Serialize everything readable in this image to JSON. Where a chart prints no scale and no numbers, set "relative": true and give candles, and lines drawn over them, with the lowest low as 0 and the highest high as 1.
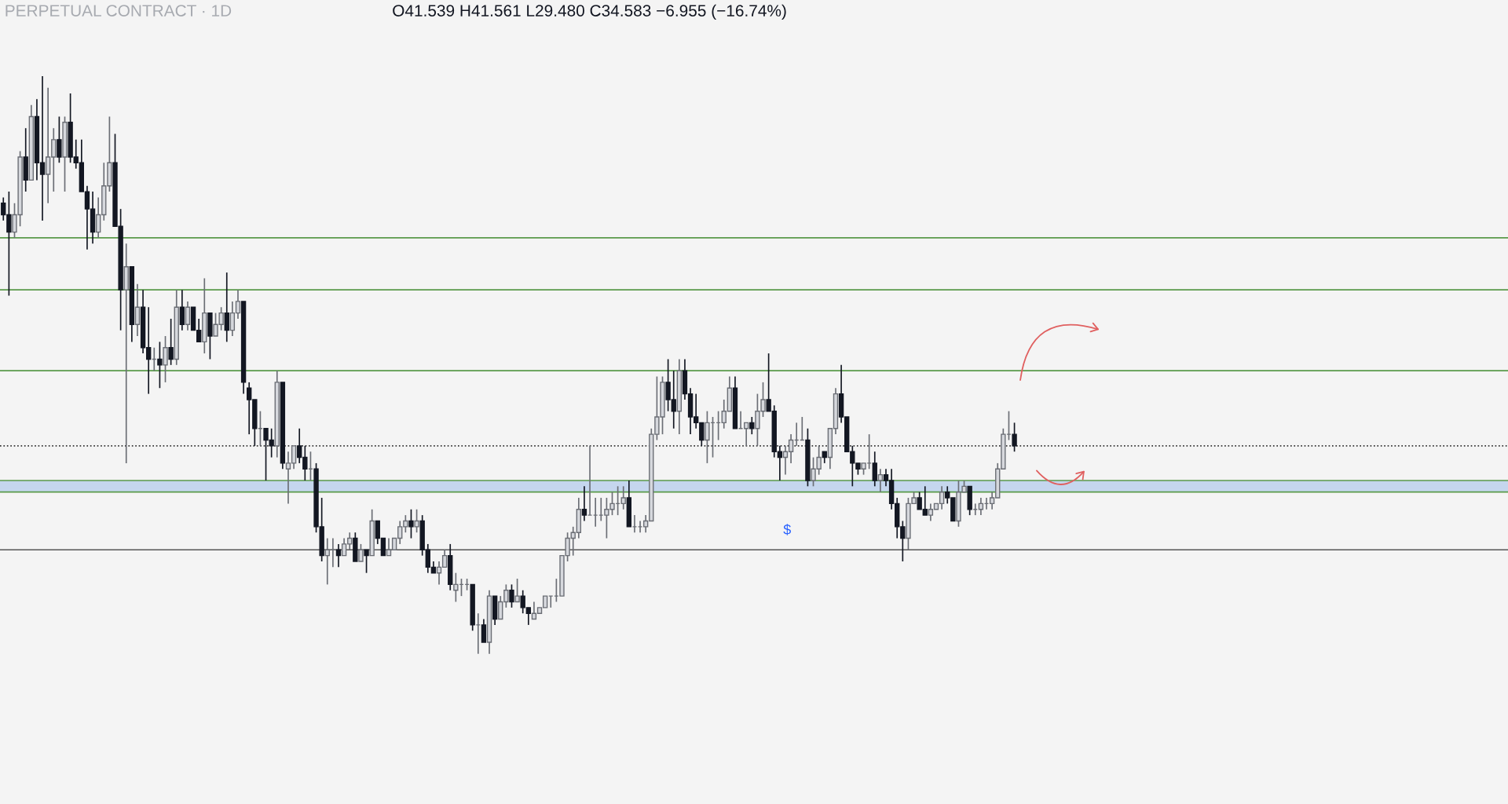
{
  "chart_data": {
    "type": "candlestick",
    "relative": true,
    "title": "PERPETUAL CONTRACT · 1D",
    "annotations": [
      "O41.539 H41.561 L29.480 C34.583 −6.955 (−16.74%)",
      "$"
    ],
    "grid": false,
    "legend": false,
    "ref_lines": [
      {
        "axis": "y",
        "value": 0.72,
        "color": "#5a9a4a",
        "line_style": "solid"
      },
      {
        "axis": "y",
        "value": 0.63,
        "color": "#5a9a4a",
        "line_style": "solid"
      },
      {
        "axis": "y",
        "value": 0.49,
        "color": "#5a9a4a",
        "line_style": "solid"
      },
      {
        "axis": "y",
        "value": 0.36,
        "color": "#333333",
        "line_style": "dotted"
      },
      {
        "axis": "y",
        "value": 0.3,
        "color": "#5a9a4a",
        "line_style": "solid"
      },
      {
        "axis": "y",
        "value": 0.28,
        "color": "#5a9a4a",
        "line_style": "solid"
      },
      {
        "axis": "y",
        "value": 0.18,
        "color": "#555555",
        "line_style": "solid"
      }
    ],
    "bands": [
      {
        "axis": "y",
        "from": 0.28,
        "to": 0.3,
        "color": "#c5d6ee"
      }
    ],
    "categories": [
      null,
      null,
      null,
      null,
      null,
      null,
      null,
      null,
      null,
      null,
      null,
      null,
      null,
      null,
      null,
      null,
      null,
      null,
      null,
      null,
      null,
      null,
      null,
      null,
      null,
      null,
      null,
      null,
      null,
      null,
      null,
      null,
      null,
      null,
      null,
      null,
      null,
      null,
      null,
      null,
      null,
      null,
      null,
      null,
      null,
      null,
      null,
      null,
      null,
      null,
      null,
      null,
      null,
      null,
      null,
      null,
      null,
      null,
      null,
      null,
      null,
      null,
      null,
      null,
      null,
      null,
      null,
      null,
      null,
      null,
      null,
      null,
      null,
      null,
      null,
      null,
      null,
      null,
      null,
      null,
      null,
      null,
      null,
      null,
      null,
      null,
      null,
      null,
      null,
      null,
      null,
      null,
      null,
      null,
      null,
      null,
      null,
      null,
      null,
      null,
      null,
      null,
      null,
      null,
      null,
      null,
      null,
      null,
      null,
      null,
      null,
      null,
      null,
      null,
      null,
      null,
      null,
      null,
      null,
      null,
      null,
      null,
      null,
      null,
      null,
      null,
      null,
      null,
      null,
      null,
      null,
      null,
      null,
      null,
      null,
      null,
      null,
      null,
      null,
      null,
      null,
      null,
      null,
      null,
      null,
      null,
      null,
      null,
      null,
      null,
      null,
      null,
      null,
      null,
      null,
      null,
      null,
      null,
      null,
      null,
      null,
      null,
      null,
      null,
      null,
      null,
      null,
      null,
      null,
      null,
      null,
      null,
      null,
      null,
      null,
      null,
      null,
      null,
      null,
      null,
      null,
      null
    ],
    "ohlc": [
      [
        0.78,
        0.79,
        0.75,
        0.76
      ],
      [
        0.76,
        0.8,
        0.62,
        0.73
      ],
      [
        0.73,
        0.78,
        0.72,
        0.76
      ],
      [
        0.76,
        0.87,
        0.74,
        0.86
      ],
      [
        0.86,
        0.91,
        0.8,
        0.82
      ],
      [
        0.82,
        0.95,
        0.82,
        0.93
      ],
      [
        0.93,
        0.96,
        0.82,
        0.85
      ],
      [
        0.85,
        1,
        0.75,
        0.83
      ],
      [
        0.83,
        0.98,
        0.78,
        0.86
      ],
      [
        0.86,
        0.91,
        0.8,
        0.89
      ],
      [
        0.89,
        0.93,
        0.85,
        0.86
      ],
      [
        0.86,
        0.93,
        0.8,
        0.92
      ],
      [
        0.92,
        0.97,
        0.85,
        0.86
      ],
      [
        0.86,
        0.89,
        0.84,
        0.85
      ],
      [
        0.85,
        0.89,
        0.8,
        0.8
      ],
      [
        0.8,
        0.81,
        0.7,
        0.77
      ],
      [
        0.77,
        0.8,
        0.71,
        0.73
      ],
      [
        0.73,
        0.79,
        0.72,
        0.76
      ],
      [
        0.76,
        0.85,
        0.75,
        0.81
      ],
      [
        0.81,
        0.93,
        0.8,
        0.85
      ],
      [
        0.85,
        0.9,
        0.74,
        0.74
      ],
      [
        0.74,
        0.77,
        0.56,
        0.63
      ],
      [
        0.63,
        0.71,
        0.33,
        0.67
      ],
      [
        0.67,
        0.67,
        0.54,
        0.57
      ],
      [
        0.57,
        0.64,
        0.55,
        0.6
      ],
      [
        0.6,
        0.63,
        0.52,
        0.53
      ],
      [
        0.53,
        0.6,
        0.45,
        0.51
      ],
      [
        0.51,
        0.53,
        0.49,
        0.51
      ],
      [
        0.51,
        0.54,
        0.46,
        0.5
      ],
      [
        0.5,
        0.55,
        0.47,
        0.53
      ],
      [
        0.53,
        0.58,
        0.5,
        0.51
      ],
      [
        0.51,
        0.63,
        0.5,
        0.6
      ],
      [
        0.6,
        0.63,
        0.56,
        0.57
      ],
      [
        0.57,
        0.61,
        0.56,
        0.6
      ],
      [
        0.6,
        0.6,
        0.56,
        0.56
      ],
      [
        0.56,
        0.58,
        0.54,
        0.54
      ],
      [
        0.54,
        0.65,
        0.52,
        0.59
      ],
      [
        0.59,
        0.59,
        0.51,
        0.55
      ],
      [
        0.55,
        0.59,
        0.55,
        0.57
      ],
      [
        0.57,
        0.6,
        0.56,
        0.59
      ],
      [
        0.59,
        0.66,
        0.54,
        0.56
      ],
      [
        0.56,
        0.61,
        0.55,
        0.59
      ],
      [
        0.59,
        0.63,
        0.58,
        0.61
      ],
      [
        0.61,
        0.61,
        0.45,
        0.47
      ],
      [
        0.46,
        0.47,
        0.38,
        0.44
      ],
      [
        0.44,
        0.44,
        0.36,
        0.39
      ],
      [
        0.39,
        0.42,
        0.36,
        0.39
      ],
      [
        0.39,
        0.39,
        0.3,
        0.37
      ],
      [
        0.37,
        0.39,
        0.34,
        0.36
      ],
      [
        0.36,
        0.49,
        0.34,
        0.47
      ],
      [
        0.47,
        0.47,
        0.32,
        0.33
      ],
      [
        0.32,
        0.35,
        0.26,
        0.33
      ],
      [
        0.33,
        0.36,
        0.32,
        0.36
      ],
      [
        0.36,
        0.39,
        0.33,
        0.34
      ],
      [
        0.34,
        0.36,
        0.3,
        0.32
      ],
      [
        0.32,
        0.35,
        0.3,
        0.32
      ],
      [
        0.32,
        0.33,
        0.21,
        0.22
      ],
      [
        0.22,
        0.27,
        0.16,
        0.17
      ],
      [
        0.17,
        0.2,
        0.12,
        0.18
      ],
      [
        0.18,
        0.2,
        0.15,
        0.18
      ],
      [
        0.18,
        0.19,
        0.15,
        0.17
      ],
      [
        0.17,
        0.2,
        0.17,
        0.19
      ],
      [
        0.19,
        0.21,
        0.18,
        0.2
      ],
      [
        0.2,
        0.21,
        0.16,
        0.16
      ],
      [
        0.16,
        0.19,
        0.16,
        0.18
      ],
      [
        0.18,
        0.18,
        0.14,
        0.17
      ],
      [
        0.17,
        0.25,
        0.17,
        0.23
      ],
      [
        0.23,
        0.23,
        0.19,
        0.2
      ],
      [
        0.2,
        0.2,
        0.17,
        0.17
      ],
      [
        0.17,
        0.2,
        0.17,
        0.18
      ],
      [
        0.18,
        0.2,
        0.18,
        0.2
      ],
      [
        0.2,
        0.23,
        0.19,
        0.22
      ],
      [
        0.22,
        0.24,
        0.21,
        0.23
      ],
      [
        0.23,
        0.25,
        0.2,
        0.22
      ],
      [
        0.22,
        0.25,
        0.21,
        0.23
      ],
      [
        0.23,
        0.24,
        0.17,
        0.18
      ],
      [
        0.18,
        0.19,
        0.14,
        0.15
      ],
      [
        0.15,
        0.16,
        0.14,
        0.14
      ],
      [
        0.14,
        0.16,
        0.12,
        0.15
      ],
      [
        0.15,
        0.18,
        0.15,
        0.17
      ],
      [
        0.17,
        0.19,
        0.11,
        0.12
      ],
      [
        0.11,
        0.14,
        0.09,
        0.12
      ],
      [
        0.12,
        0.13,
        0.1,
        0.12
      ],
      [
        0.12,
        0.13,
        0.11,
        0.12
      ],
      [
        0.12,
        0.12,
        0.04,
        0.05
      ],
      [
        0.05,
        0.07,
        0,
        0.05
      ],
      [
        0.05,
        0.06,
        0.02,
        0.02
      ],
      [
        0.02,
        0.11,
        0,
        0.1
      ],
      [
        0.1,
        0.1,
        0.05,
        0.06
      ],
      [
        0.06,
        0.1,
        0.06,
        0.09
      ],
      [
        0.09,
        0.12,
        0.08,
        0.11
      ],
      [
        0.11,
        0.12,
        0.08,
        0.09
      ],
      [
        0.09,
        0.13,
        0.09,
        0.1
      ],
      [
        0.1,
        0.11,
        0.07,
        0.08
      ],
      [
        0.08,
        0.08,
        0.05,
        0.07
      ],
      [
        0.06,
        0.09,
        0.06,
        0.07
      ],
      [
        0.07,
        0.08,
        0.07,
        0.08
      ],
      [
        0.08,
        0.1,
        0.08,
        0.1
      ],
      [
        0.1,
        0.1,
        0.08,
        0.1
      ],
      [
        0.1,
        0.13,
        0.09,
        0.1
      ],
      [
        0.1,
        0.17,
        0.1,
        0.17
      ],
      [
        0.17,
        0.21,
        0.16,
        0.2
      ],
      [
        0.2,
        0.22,
        0.17,
        0.21
      ],
      [
        0.21,
        0.27,
        0.2,
        0.25
      ],
      [
        0.25,
        0.29,
        0.23,
        0.24
      ],
      [
        0.24,
        0.36,
        0.24,
        0.24
      ],
      [
        0.24,
        0.27,
        0.22,
        0.24
      ],
      [
        0.24,
        0.27,
        0.23,
        0.24
      ],
      [
        0.24,
        0.27,
        0.2,
        0.25
      ],
      [
        0.25,
        0.28,
        0.24,
        0.26
      ],
      [
        0.26,
        0.29,
        0.24,
        0.26
      ],
      [
        0.26,
        0.29,
        0.25,
        0.27
      ],
      [
        0.27,
        0.3,
        0.22,
        0.22
      ],
      [
        0.22,
        0.24,
        0.21,
        0.22
      ],
      [
        0.22,
        0.23,
        0.21,
        0.22
      ],
      [
        0.22,
        0.24,
        0.21,
        0.23
      ],
      [
        0.23,
        0.39,
        0.23,
        0.38
      ],
      [
        0.38,
        0.48,
        0.37,
        0.41
      ],
      [
        0.41,
        0.48,
        0.38,
        0.47
      ],
      [
        0.47,
        0.51,
        0.42,
        0.44
      ],
      [
        0.44,
        0.49,
        0.39,
        0.42
      ],
      [
        0.42,
        0.51,
        0.38,
        0.49
      ],
      [
        0.49,
        0.51,
        0.44,
        0.45
      ],
      [
        0.45,
        0.46,
        0.38,
        0.41
      ],
      [
        0.41,
        0.45,
        0.39,
        0.4
      ],
      [
        0.4,
        0.4,
        0.36,
        0.37
      ],
      [
        0.37,
        0.42,
        0.33,
        0.4
      ],
      [
        0.4,
        0.41,
        0.34,
        0.4
      ],
      [
        0.4,
        0.42,
        0.37,
        0.4
      ],
      [
        0.4,
        0.44,
        0.39,
        0.42
      ],
      [
        0.42,
        0.48,
        0.42,
        0.46
      ],
      [
        0.46,
        0.48,
        0.39,
        0.39
      ],
      [
        0.39,
        0.42,
        0.39,
        0.39
      ],
      [
        0.39,
        0.4,
        0.36,
        0.4
      ],
      [
        0.4,
        0.41,
        0.38,
        0.39
      ],
      [
        0.39,
        0.45,
        0.36,
        0.42
      ],
      [
        0.42,
        0.47,
        0.41,
        0.44
      ],
      [
        0.44,
        0.52,
        0.42,
        0.42
      ],
      [
        0.42,
        0.43,
        0.34,
        0.35
      ],
      [
        0.35,
        0.36,
        0.3,
        0.34
      ],
      [
        0.34,
        0.36,
        0.31,
        0.35
      ],
      [
        0.35,
        0.38,
        0.33,
        0.37
      ],
      [
        0.37,
        0.4,
        0.36,
        0.37
      ],
      [
        0.37,
        0.41,
        0.37,
        0.37
      ],
      [
        0.37,
        0.39,
        0.29,
        0.3
      ],
      [
        0.3,
        0.34,
        0.29,
        0.32
      ],
      [
        0.32,
        0.36,
        0.31,
        0.34
      ],
      [
        0.35,
        0.35,
        0.33,
        0.34
      ],
      [
        0.34,
        0.39,
        0.32,
        0.39
      ],
      [
        0.39,
        0.46,
        0.38,
        0.45
      ],
      [
        0.45,
        0.5,
        0.4,
        0.41
      ],
      [
        0.41,
        0.41,
        0.35,
        0.35
      ],
      [
        0.35,
        0.36,
        0.29,
        0.33
      ],
      [
        0.33,
        0.33,
        0.31,
        0.32
      ],
      [
        0.32,
        0.33,
        0.31,
        0.33
      ],
      [
        0.33,
        0.38,
        0.32,
        0.33
      ],
      [
        0.33,
        0.35,
        0.29,
        0.3
      ],
      [
        0.3,
        0.32,
        0.28,
        0.31
      ],
      [
        0.31,
        0.32,
        0.29,
        0.3
      ],
      [
        0.3,
        0.32,
        0.25,
        0.26
      ],
      [
        0.26,
        0.27,
        0.2,
        0.22
      ],
      [
        0.22,
        0.23,
        0.16,
        0.2
      ],
      [
        0.2,
        0.27,
        0.18,
        0.26
      ],
      [
        0.26,
        0.28,
        0.26,
        0.27
      ],
      [
        0.27,
        0.28,
        0.25,
        0.25
      ],
      [
        0.25,
        0.29,
        0.24,
        0.24
      ],
      [
        0.24,
        0.26,
        0.23,
        0.25
      ],
      [
        0.25,
        0.26,
        0.25,
        0.26
      ],
      [
        0.26,
        0.29,
        0.25,
        0.28
      ],
      [
        0.28,
        0.29,
        0.26,
        0.27
      ],
      [
        0.27,
        0.27,
        0.23,
        0.23
      ],
      [
        0.23,
        0.3,
        0.22,
        0.28
      ],
      [
        0.28,
        0.3,
        0.28,
        0.29
      ],
      [
        0.29,
        0.29,
        0.24,
        0.25
      ],
      [
        0.25,
        0.26,
        0.24,
        0.25
      ],
      [
        0.25,
        0.27,
        0.24,
        0.26
      ],
      [
        0.26,
        0.27,
        0.25,
        0.26
      ],
      [
        0.26,
        0.28,
        0.25,
        0.27
      ],
      [
        0.27,
        0.33,
        0.27,
        0.32
      ],
      [
        0.32,
        0.39,
        0.32,
        0.38
      ],
      [
        0.38,
        0.42,
        0.37,
        0.38
      ],
      [
        0.38,
        0.4,
        0.35,
        0.36
      ]
    ]
  }
}
